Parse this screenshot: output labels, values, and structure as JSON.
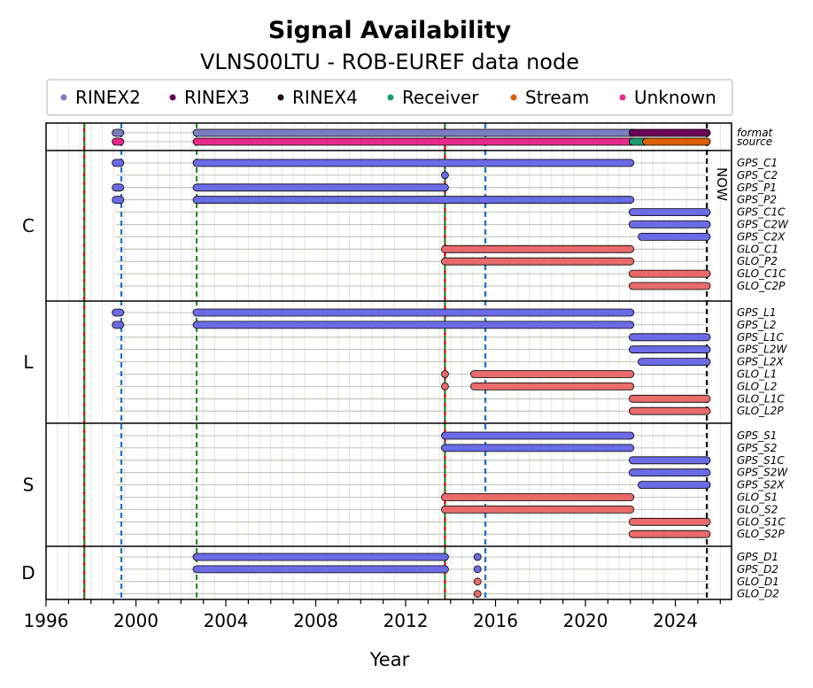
{
  "chart_data": {
    "type": "timeline",
    "title": "Signal Availability",
    "subtitle": "VLNS00LTU - ROB-EUREF data node",
    "xlabel": "Year",
    "xlim": [
      1996.0,
      2026.5
    ],
    "x_ticks": [
      1996,
      2000,
      2004,
      2008,
      2012,
      2016,
      2020,
      2024
    ],
    "legend": [
      {
        "label": "RINEX2",
        "color": "#7b7ebf"
      },
      {
        "label": "RINEX3",
        "color": "#6b0057"
      },
      {
        "label": "RINEX4",
        "color": "#1a0010"
      },
      {
        "label": "Receiver",
        "color": "#189a6e"
      },
      {
        "label": "Stream",
        "color": "#d95f02"
      },
      {
        "label": "Unknown",
        "color": "#e7298a"
      }
    ],
    "colors": {
      "gps": "#6b6be6",
      "glo": "#e86a6a"
    },
    "groups": [
      "C",
      "L",
      "S",
      "D"
    ],
    "vlines": [
      {
        "x": 1997.7,
        "color": "#cc0000",
        "style": "solid"
      },
      {
        "x": 1997.7,
        "color": "#2e8b2e",
        "style": "dashed"
      },
      {
        "x": 1999.35,
        "color": "#1f6fc8",
        "style": "dashed"
      },
      {
        "x": 2002.7,
        "color": "#2e8b2e",
        "style": "dashed"
      },
      {
        "x": 2013.75,
        "color": "#cc0000",
        "style": "solid"
      },
      {
        "x": 2013.75,
        "color": "#2e8b2e",
        "style": "dashed"
      },
      {
        "x": 2015.55,
        "color": "#1f6fc8",
        "style": "dashed"
      },
      {
        "x": 2025.4,
        "color": "#000000",
        "style": "dashed"
      }
    ],
    "now_label": "NOW",
    "rows": [
      {
        "label": "format",
        "group": "top",
        "bars": [
          [
            1999.1,
            1999.3,
            "#7b7ebf"
          ],
          [
            2002.7,
            2022.1,
            "#7b7ebf"
          ],
          [
            2022.1,
            2025.4,
            "#6b0057"
          ]
        ]
      },
      {
        "label": "source",
        "group": "top",
        "bars": [
          [
            1999.1,
            1999.3,
            "#e7298a"
          ],
          [
            2002.7,
            2022.1,
            "#e7298a"
          ],
          [
            2022.1,
            2022.7,
            "#189a6e"
          ],
          [
            2022.7,
            2025.4,
            "#d95f02"
          ]
        ]
      },
      {
        "label": "GPS_C1",
        "group": "C",
        "bars": [
          [
            1999.1,
            1999.3,
            "#6b6be6"
          ],
          [
            2002.7,
            2022.0,
            "#6b6be6"
          ]
        ]
      },
      {
        "label": "GPS_C2",
        "group": "C",
        "bars": [
          [
            2013.75,
            2013.75,
            "#6b6be6"
          ]
        ]
      },
      {
        "label": "GPS_P1",
        "group": "C",
        "bars": [
          [
            1999.1,
            1999.3,
            "#6b6be6"
          ],
          [
            2002.7,
            2013.75,
            "#6b6be6"
          ]
        ]
      },
      {
        "label": "GPS_P2",
        "group": "C",
        "bars": [
          [
            1999.1,
            1999.3,
            "#6b6be6"
          ],
          [
            2002.7,
            2022.0,
            "#6b6be6"
          ]
        ]
      },
      {
        "label": "GPS_C1C",
        "group": "C",
        "bars": [
          [
            2022.1,
            2025.4,
            "#6b6be6"
          ]
        ]
      },
      {
        "label": "GPS_C2W",
        "group": "C",
        "bars": [
          [
            2022.1,
            2025.4,
            "#6b6be6"
          ]
        ]
      },
      {
        "label": "GPS_C2X",
        "group": "C",
        "bars": [
          [
            2022.5,
            2025.4,
            "#6b6be6"
          ]
        ]
      },
      {
        "label": "GLO_C1",
        "group": "C",
        "bars": [
          [
            2013.75,
            2022.0,
            "#e86a6a"
          ]
        ]
      },
      {
        "label": "GLO_P2",
        "group": "C",
        "bars": [
          [
            2013.75,
            2022.0,
            "#e86a6a"
          ]
        ]
      },
      {
        "label": "GLO_C1C",
        "group": "C",
        "bars": [
          [
            2022.1,
            2025.4,
            "#e86a6a"
          ]
        ]
      },
      {
        "label": "GLO_C2P",
        "group": "C",
        "bars": [
          [
            2022.1,
            2025.4,
            "#e86a6a"
          ]
        ]
      },
      {
        "label": "GPS_L1",
        "group": "L",
        "bars": [
          [
            1999.1,
            1999.3,
            "#6b6be6"
          ],
          [
            2002.7,
            2022.0,
            "#6b6be6"
          ]
        ]
      },
      {
        "label": "GPS_L2",
        "group": "L",
        "bars": [
          [
            1999.1,
            1999.3,
            "#6b6be6"
          ],
          [
            2002.7,
            2022.0,
            "#6b6be6"
          ]
        ]
      },
      {
        "label": "GPS_L1C",
        "group": "L",
        "bars": [
          [
            2022.1,
            2025.4,
            "#6b6be6"
          ]
        ]
      },
      {
        "label": "GPS_L2W",
        "group": "L",
        "bars": [
          [
            2022.1,
            2025.4,
            "#6b6be6"
          ]
        ]
      },
      {
        "label": "GPS_L2X",
        "group": "L",
        "bars": [
          [
            2022.5,
            2025.4,
            "#6b6be6"
          ]
        ]
      },
      {
        "label": "GLO_L1",
        "group": "L",
        "bars": [
          [
            2013.75,
            2013.75,
            "#e86a6a"
          ],
          [
            2015.05,
            2022.0,
            "#e86a6a"
          ]
        ]
      },
      {
        "label": "GLO_L2",
        "group": "L",
        "bars": [
          [
            2013.75,
            2013.75,
            "#e86a6a"
          ],
          [
            2015.05,
            2022.0,
            "#e86a6a"
          ]
        ]
      },
      {
        "label": "GLO_L1C",
        "group": "L",
        "bars": [
          [
            2022.1,
            2025.4,
            "#e86a6a"
          ]
        ]
      },
      {
        "label": "GLO_L2P",
        "group": "L",
        "bars": [
          [
            2022.1,
            2025.4,
            "#e86a6a"
          ]
        ]
      },
      {
        "label": "GPS_S1",
        "group": "S",
        "bars": [
          [
            2013.75,
            2022.0,
            "#6b6be6"
          ]
        ]
      },
      {
        "label": "GPS_S2",
        "group": "S",
        "bars": [
          [
            2013.75,
            2022.0,
            "#6b6be6"
          ]
        ]
      },
      {
        "label": "GPS_S1C",
        "group": "S",
        "bars": [
          [
            2022.1,
            2025.4,
            "#6b6be6"
          ]
        ]
      },
      {
        "label": "GPS_S2W",
        "group": "S",
        "bars": [
          [
            2022.1,
            2025.4,
            "#6b6be6"
          ]
        ]
      },
      {
        "label": "GPS_S2X",
        "group": "S",
        "bars": [
          [
            2022.5,
            2025.4,
            "#6b6be6"
          ]
        ]
      },
      {
        "label": "GLO_S1",
        "group": "S",
        "bars": [
          [
            2013.75,
            2022.0,
            "#e86a6a"
          ]
        ]
      },
      {
        "label": "GLO_S2",
        "group": "S",
        "bars": [
          [
            2013.75,
            2022.0,
            "#e86a6a"
          ]
        ]
      },
      {
        "label": "GLO_S1C",
        "group": "S",
        "bars": [
          [
            2022.1,
            2025.4,
            "#e86a6a"
          ]
        ]
      },
      {
        "label": "GLO_S2P",
        "group": "S",
        "bars": [
          [
            2022.1,
            2025.4,
            "#e86a6a"
          ]
        ]
      },
      {
        "label": "GPS_D1",
        "group": "D",
        "bars": [
          [
            2002.7,
            2013.75,
            "#6b6be6"
          ],
          [
            2015.2,
            2015.2,
            "#6b6be6"
          ]
        ]
      },
      {
        "label": "GPS_D2",
        "group": "D",
        "bars": [
          [
            2002.7,
            2013.75,
            "#6b6be6"
          ],
          [
            2015.2,
            2015.2,
            "#6b6be6"
          ]
        ]
      },
      {
        "label": "GLO_D1",
        "group": "D",
        "bars": [
          [
            2015.2,
            2015.2,
            "#e86a6a"
          ]
        ]
      },
      {
        "label": "GLO_D2",
        "group": "D",
        "bars": [
          [
            2015.2,
            2015.2,
            "#e86a6a"
          ]
        ]
      }
    ]
  }
}
